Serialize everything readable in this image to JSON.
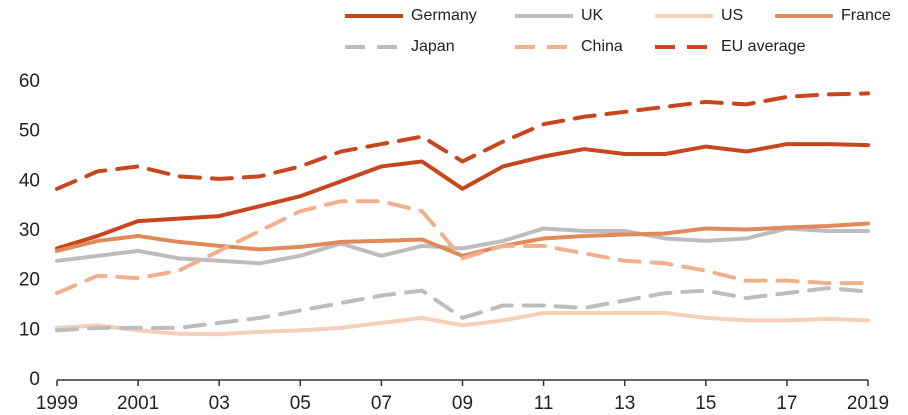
{
  "chart_data": {
    "type": "line",
    "x": [
      1999,
      2000,
      2001,
      2002,
      2003,
      2004,
      2005,
      2006,
      2007,
      2008,
      2009,
      2010,
      2011,
      2012,
      2013,
      2014,
      2015,
      2016,
      2017,
      2018,
      2019
    ],
    "series": [
      {
        "name": "Germany",
        "color": "#c8461e",
        "dash": false,
        "values": [
          26.5,
          29,
          32,
          32.5,
          33,
          35,
          37,
          40,
          43,
          44,
          38.5,
          43,
          45,
          46.5,
          45.5,
          45.5,
          47,
          46,
          47.5,
          47.5,
          47.3
        ]
      },
      {
        "name": "UK",
        "color": "#bdbdbd",
        "dash": false,
        "values": [
          24,
          25,
          26,
          24.5,
          24,
          23.5,
          25,
          27.5,
          25,
          27,
          26.5,
          28,
          30.5,
          30,
          30,
          28.5,
          28,
          28.5,
          30.5,
          30,
          30
        ]
      },
      {
        "name": "US",
        "color": "#f6cfb8",
        "dash": false,
        "values": [
          10.5,
          11,
          10,
          9.3,
          9.2,
          9.7,
          10,
          10.5,
          11.5,
          12.5,
          11,
          12,
          13.5,
          13.5,
          13.5,
          13.5,
          12.5,
          12,
          12,
          12.3,
          12
        ]
      },
      {
        "name": "France",
        "color": "#e08a5a",
        "dash": false,
        "values": [
          26,
          28,
          29,
          27.8,
          27,
          26.3,
          26.8,
          27.8,
          28,
          28.3,
          25,
          27,
          28.5,
          29,
          29.3,
          29.5,
          30.5,
          30.3,
          30.7,
          31,
          31.5
        ]
      },
      {
        "name": "Japan",
        "color": "#bdbdbd",
        "dash": true,
        "values": [
          10,
          10.5,
          10.5,
          10.5,
          11.5,
          12.5,
          14,
          15.5,
          17,
          18,
          12.5,
          15,
          15,
          14.5,
          16,
          17.5,
          18,
          16.5,
          17.5,
          18.5,
          17.8
        ]
      },
      {
        "name": "China",
        "color": "#f0b08c",
        "dash": true,
        "values": [
          17.5,
          21,
          20.5,
          22,
          26,
          30,
          34,
          36,
          36,
          34,
          24.5,
          27,
          27,
          25.5,
          24,
          23.5,
          22,
          20,
          20,
          19.5,
          19.5
        ]
      },
      {
        "name": "EU average",
        "color": "#c8461e",
        "dash": true,
        "values": [
          38.5,
          42,
          43,
          41,
          40.5,
          41,
          43,
          46,
          47.5,
          49,
          44,
          48,
          51.5,
          53,
          54,
          55,
          56,
          55.5,
          57,
          57.5,
          57.7
        ]
      }
    ],
    "xlim": [
      1999,
      2019
    ],
    "xticks": [
      1999,
      2001,
      {
        "value": 2003,
        "label": "03"
      },
      {
        "value": 2005,
        "label": "05"
      },
      {
        "value": 2007,
        "label": "07"
      },
      {
        "value": 2009,
        "label": "09"
      },
      {
        "value": 2011,
        "label": "11"
      },
      {
        "value": 2013,
        "label": "13"
      },
      {
        "value": 2015,
        "label": "15"
      },
      {
        "value": 2017,
        "label": "17"
      },
      2019
    ],
    "ylim": [
      0,
      60
    ],
    "yticks": [
      0,
      10,
      20,
      30,
      40,
      50,
      60
    ],
    "grid": false,
    "legend": "top-right"
  }
}
